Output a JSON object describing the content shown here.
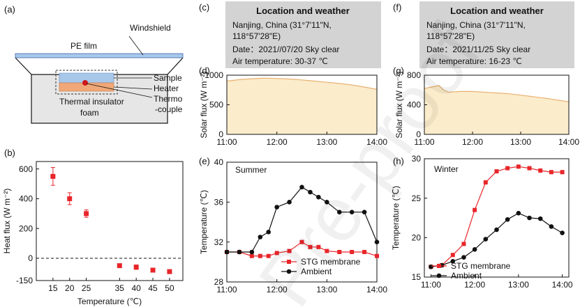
{
  "figure": {
    "watermark": "Pre-proof",
    "panel_labels": {
      "a": "(a)",
      "b": "(b)",
      "c": "(c)",
      "d": "(d)",
      "e": "(e)",
      "f": "(f)",
      "g": "(g)",
      "h": "(h)"
    },
    "schematic": {
      "windshield": "Windshield",
      "pe_film": "PE film",
      "sample": "Sample",
      "heater": "Heater",
      "thermocouple_line1": "Thermo",
      "thermocouple_line2": "-couple",
      "insulator_line1": "Thermal insulator",
      "insulator_line2": "foam"
    },
    "info_summer": {
      "title": "Location and weather",
      "line1": "Nanjing, China (31°7'11\"N,",
      "line2": "118°57'28\"E)",
      "line3": "Date：2021//07/20  Sky clear",
      "line4": "Air temperature: 30-37 ℃"
    },
    "info_winter": {
      "title": "Location and weather",
      "line1": "Nanjing, China (31°7'11\"N,",
      "line2": "118°57'28\"E)",
      "line3": "Date：2021/11/25  Sky clear",
      "line4": "Air temperature: 16-23 ℃"
    },
    "colors": {
      "red": "#e8262a",
      "black": "#111111",
      "fill": "#fbeccb",
      "flux_line": "#e8b070",
      "box": "#d3d3d3"
    }
  },
  "chart_data": [
    {
      "id": "b",
      "type": "scatter",
      "xlabel": "Temperature (℃)",
      "ylabel": "Heat flux (W m⁻²)",
      "x_ticks": [
        "15",
        "20",
        "25",
        "35",
        "40",
        "45",
        "50"
      ],
      "y_ticks": [
        "600",
        "400",
        "200",
        "0",
        "-150"
      ],
      "xlim": [
        10,
        54
      ],
      "ylim": [
        -150,
        650
      ],
      "x": [
        15,
        20,
        25,
        35,
        40,
        45,
        50
      ],
      "y": [
        550,
        400,
        300,
        -50,
        -60,
        -80,
        -90
      ],
      "err": [
        60,
        40,
        25,
        8,
        15,
        8,
        8
      ],
      "reference_line": 0
    },
    {
      "id": "d",
      "type": "area",
      "xlabel": "",
      "ylabel": "Solar flux (W m⁻²)",
      "x_ticks": [
        "11:00",
        "12:00",
        "13:00",
        "14:00"
      ],
      "y_ticks": [
        "0",
        "500",
        "1000"
      ],
      "xlim": [
        11,
        14
      ],
      "ylim": [
        0,
        1000
      ],
      "x": [
        11,
        11.25,
        11.5,
        11.75,
        12,
        12.25,
        12.5,
        12.75,
        13,
        13.25,
        13.5,
        13.75,
        14
      ],
      "values": [
        900,
        925,
        940,
        950,
        945,
        935,
        920,
        900,
        880,
        860,
        835,
        800,
        760
      ]
    },
    {
      "id": "e",
      "type": "line",
      "title": "Summer",
      "xlabel": "",
      "ylabel": "Temperature (℃)",
      "x_ticks": [
        "11:00",
        "12:00",
        "13:00",
        "14:00"
      ],
      "y_ticks": [
        "28",
        "32",
        "36",
        "40"
      ],
      "xlim": [
        11,
        14
      ],
      "ylim": [
        28,
        40
      ],
      "legend": [
        "STG membrane",
        "Ambient"
      ],
      "series": [
        {
          "name": "STG membrane",
          "x": [
            11,
            11.25,
            11.5,
            11.667,
            11.833,
            12,
            12.25,
            12.5,
            12.667,
            12.833,
            13,
            13.25,
            13.5,
            13.75,
            14
          ],
          "values": [
            31.0,
            31.0,
            30.6,
            30.6,
            30.6,
            30.9,
            31.1,
            32.0,
            31.5,
            31.5,
            31.1,
            31.0,
            31.0,
            31.0,
            30.6
          ]
        },
        {
          "name": "Ambient",
          "x": [
            11,
            11.25,
            11.5,
            11.667,
            11.833,
            12,
            12.25,
            12.5,
            12.667,
            12.833,
            13,
            13.25,
            13.5,
            13.75,
            14
          ],
          "values": [
            31.0,
            31.0,
            31.0,
            32.5,
            33.0,
            35.5,
            36.0,
            37.5,
            37.0,
            36.5,
            36.0,
            35.0,
            35.0,
            35.0,
            32.0
          ]
        }
      ]
    },
    {
      "id": "g",
      "type": "area",
      "xlabel": "",
      "ylabel": "Solar flux (W m⁻²)",
      "x_ticks": [
        "11:00",
        "12:00",
        "13:00",
        "14:00"
      ],
      "y_ticks": [
        "0",
        "400",
        "800"
      ],
      "xlim": [
        11,
        14
      ],
      "ylim": [
        0,
        800
      ],
      "x": [
        11,
        11.15,
        11.3,
        11.4,
        11.5,
        11.75,
        12,
        12.25,
        12.5,
        12.75,
        13,
        13.25,
        13.5,
        13.75,
        14
      ],
      "values": [
        620,
        640,
        660,
        600,
        570,
        580,
        580,
        570,
        560,
        550,
        530,
        510,
        490,
        465,
        440
      ]
    },
    {
      "id": "h",
      "type": "line",
      "title": "Winter",
      "xlabel": "",
      "ylabel": "Temperature (℃)",
      "x_ticks": [
        "11:00",
        "12:00",
        "13:00",
        "14:00"
      ],
      "y_ticks": [
        "15",
        "20",
        "25",
        "30"
      ],
      "xlim": [
        10.85,
        14.15
      ],
      "ylim": [
        15,
        30
      ],
      "legend": [
        "STG membrane",
        "Ambient"
      ],
      "series": [
        {
          "name": "STG membrane",
          "x": [
            11,
            11.25,
            11.5,
            11.75,
            12,
            12.25,
            12.5,
            12.75,
            13,
            13.25,
            13.5,
            13.75,
            14
          ],
          "values": [
            16.3,
            16.5,
            17.8,
            19.2,
            23.5,
            27.0,
            28.4,
            28.8,
            29.0,
            28.8,
            28.5,
            28.3,
            28.3
          ]
        },
        {
          "name": "Ambient",
          "x": [
            11,
            11.25,
            11.5,
            11.75,
            12,
            12.25,
            12.5,
            12.75,
            13,
            13.25,
            13.5,
            13.75,
            14
          ],
          "values": [
            16.3,
            16.5,
            17.0,
            17.5,
            18.5,
            19.8,
            21.0,
            22.3,
            23.1,
            22.5,
            22.4,
            21.4,
            20.6
          ]
        }
      ]
    }
  ]
}
